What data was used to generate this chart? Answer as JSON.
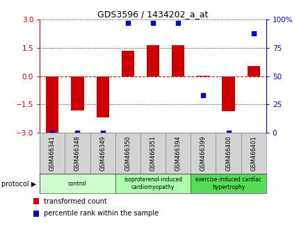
{
  "title": "GDS3596 / 1434202_a_at",
  "samples": [
    "GSM466341",
    "GSM466348",
    "GSM466349",
    "GSM466350",
    "GSM466351",
    "GSM466394",
    "GSM466399",
    "GSM466400",
    "GSM466401"
  ],
  "transformed_counts": [
    -3.0,
    -1.8,
    -2.2,
    1.35,
    1.65,
    1.65,
    0.02,
    -1.85,
    0.55
  ],
  "percentile_ranks": [
    0,
    0,
    0,
    97,
    97,
    97,
    33,
    0,
    88
  ],
  "groups": [
    {
      "label": "control",
      "start": 0,
      "end": 3,
      "color": "#ccffcc"
    },
    {
      "label": "isoproterenol-induced\ncardiomyopathy",
      "start": 3,
      "end": 6,
      "color": "#aaffaa"
    },
    {
      "label": "exercise-induced cardiac\nhypertrophy",
      "start": 6,
      "end": 9,
      "color": "#55dd55"
    }
  ],
  "bar_color": "#cc0000",
  "dot_color": "#0000cc",
  "ylim": [
    -3,
    3
  ],
  "y2lim": [
    0,
    100
  ],
  "yticks": [
    -3,
    -1.5,
    0,
    1.5,
    3
  ],
  "y2ticks": [
    0,
    25,
    50,
    75,
    100
  ],
  "y2ticklabels": [
    "0",
    "25",
    "50",
    "75",
    "100%"
  ],
  "bar_width": 0.5,
  "label_bg": "#d3d3d3",
  "legend_items": [
    "transformed count",
    "percentile rank within the sample"
  ],
  "protocol_label": "protocol ▶",
  "fig_width": 4.4,
  "fig_height": 3.54,
  "dpi": 100
}
